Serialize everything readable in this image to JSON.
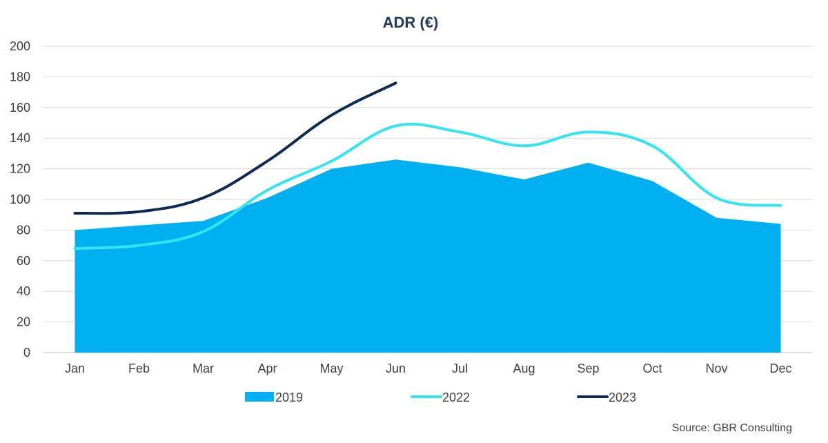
{
  "chart_data": {
    "type": "area",
    "title": "ADR (€)",
    "categories": [
      "Jan",
      "Feb",
      "Mar",
      "Apr",
      "May",
      "Jun",
      "Jul",
      "Aug",
      "Sep",
      "Oct",
      "Nov",
      "Dec"
    ],
    "ylim": [
      0,
      200
    ],
    "yticks": [
      0,
      20,
      40,
      60,
      80,
      100,
      120,
      140,
      160,
      180,
      200
    ],
    "grid": true,
    "legend_position": "bottom",
    "series": [
      {
        "name": "2019",
        "kind": "area",
        "color": "#00b0f0",
        "values": [
          80,
          83,
          86,
          101,
          120,
          126,
          121,
          113,
          124,
          112,
          88,
          84
        ]
      },
      {
        "name": "2022",
        "kind": "line",
        "color": "#33e5f0",
        "values": [
          68,
          70,
          79,
          106,
          125,
          148,
          144,
          135,
          144,
          135,
          101,
          96
        ]
      },
      {
        "name": "2023",
        "kind": "line",
        "color": "#0d2b52",
        "values": [
          91,
          92,
          101,
          125,
          155,
          176,
          null,
          null,
          null,
          null,
          null,
          null
        ]
      }
    ],
    "source": "Source: GBR Consulting"
  }
}
